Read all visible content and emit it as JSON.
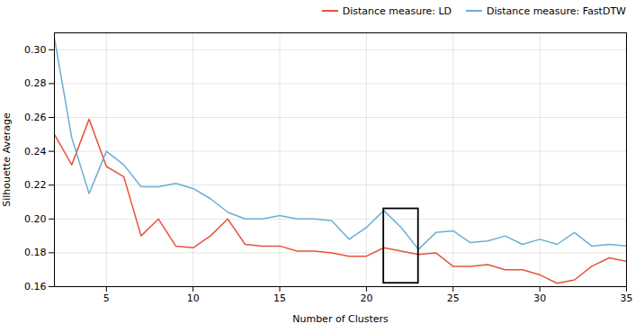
{
  "chart_data": {
    "type": "line",
    "x": [
      2,
      3,
      4,
      5,
      6,
      7,
      8,
      9,
      10,
      11,
      12,
      13,
      14,
      15,
      16,
      17,
      18,
      19,
      20,
      21,
      22,
      23,
      24,
      25,
      26,
      27,
      28,
      29,
      30,
      31,
      32,
      33,
      34,
      35
    ],
    "series": [
      {
        "name": "Distance measure: LD",
        "color": "#e8533d",
        "values": [
          0.25,
          0.232,
          0.259,
          0.231,
          0.225,
          0.19,
          0.2,
          0.184,
          0.183,
          0.19,
          0.2,
          0.185,
          0.184,
          0.184,
          0.181,
          0.181,
          0.18,
          0.178,
          0.178,
          0.183,
          0.181,
          0.179,
          0.18,
          0.172,
          0.172,
          0.173,
          0.17,
          0.17,
          0.167,
          0.162,
          0.164,
          0.172,
          0.177,
          0.175
        ]
      },
      {
        "name": "Distance measure: FastDTW",
        "color": "#6baed6",
        "values": [
          0.307,
          0.248,
          0.215,
          0.24,
          0.232,
          0.219,
          0.219,
          0.221,
          0.218,
          0.212,
          0.204,
          0.2,
          0.2,
          0.202,
          0.2,
          0.2,
          0.199,
          0.188,
          0.195,
          0.205,
          0.195,
          0.182,
          0.192,
          0.193,
          0.186,
          0.187,
          0.19,
          0.185,
          0.188,
          0.185,
          0.192,
          0.184,
          0.185,
          0.184
        ]
      }
    ],
    "xlabel": "Number of Clusters",
    "ylabel": "Silhouette Average",
    "xlim": [
      2,
      35
    ],
    "ylim": [
      0.16,
      0.31
    ],
    "xticks": [
      5,
      10,
      15,
      20,
      25,
      30,
      35
    ],
    "yticks": [
      0.16,
      0.18,
      {
        "value": 0.2,
        "label": "0.20"
      },
      0.22,
      0.24,
      0.26,
      0.28,
      {
        "value": 0.3,
        "label": "0.30"
      }
    ],
    "highlight_box": {
      "x1": 21.0,
      "x2": 23.0,
      "y1": 0.162,
      "y2": 0.206
    },
    "grid": true,
    "legend": "upper right"
  }
}
